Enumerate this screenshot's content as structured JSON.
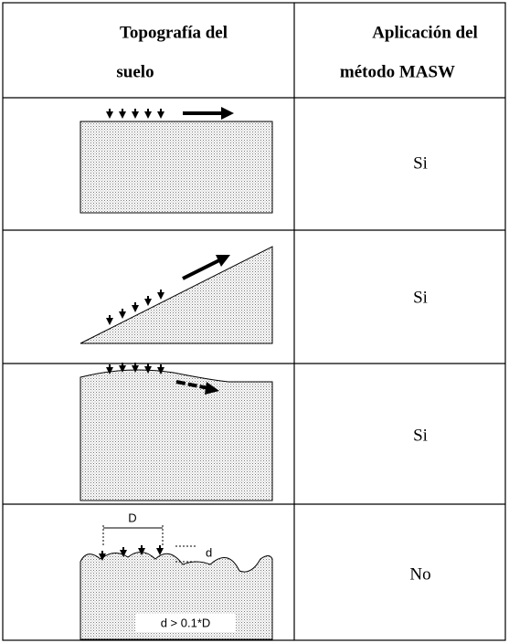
{
  "header": {
    "col1": [
      "Topografía del",
      "suelo"
    ],
    "col2": [
      "Aplicación del",
      "método MASW"
    ]
  },
  "rows": [
    {
      "answer": "Si"
    },
    {
      "answer": "Si"
    },
    {
      "answer": "Si"
    },
    {
      "answer": "No",
      "labels": {
        "distance": "D",
        "depth": "d",
        "condition": "d > 0.1*D"
      }
    }
  ]
}
